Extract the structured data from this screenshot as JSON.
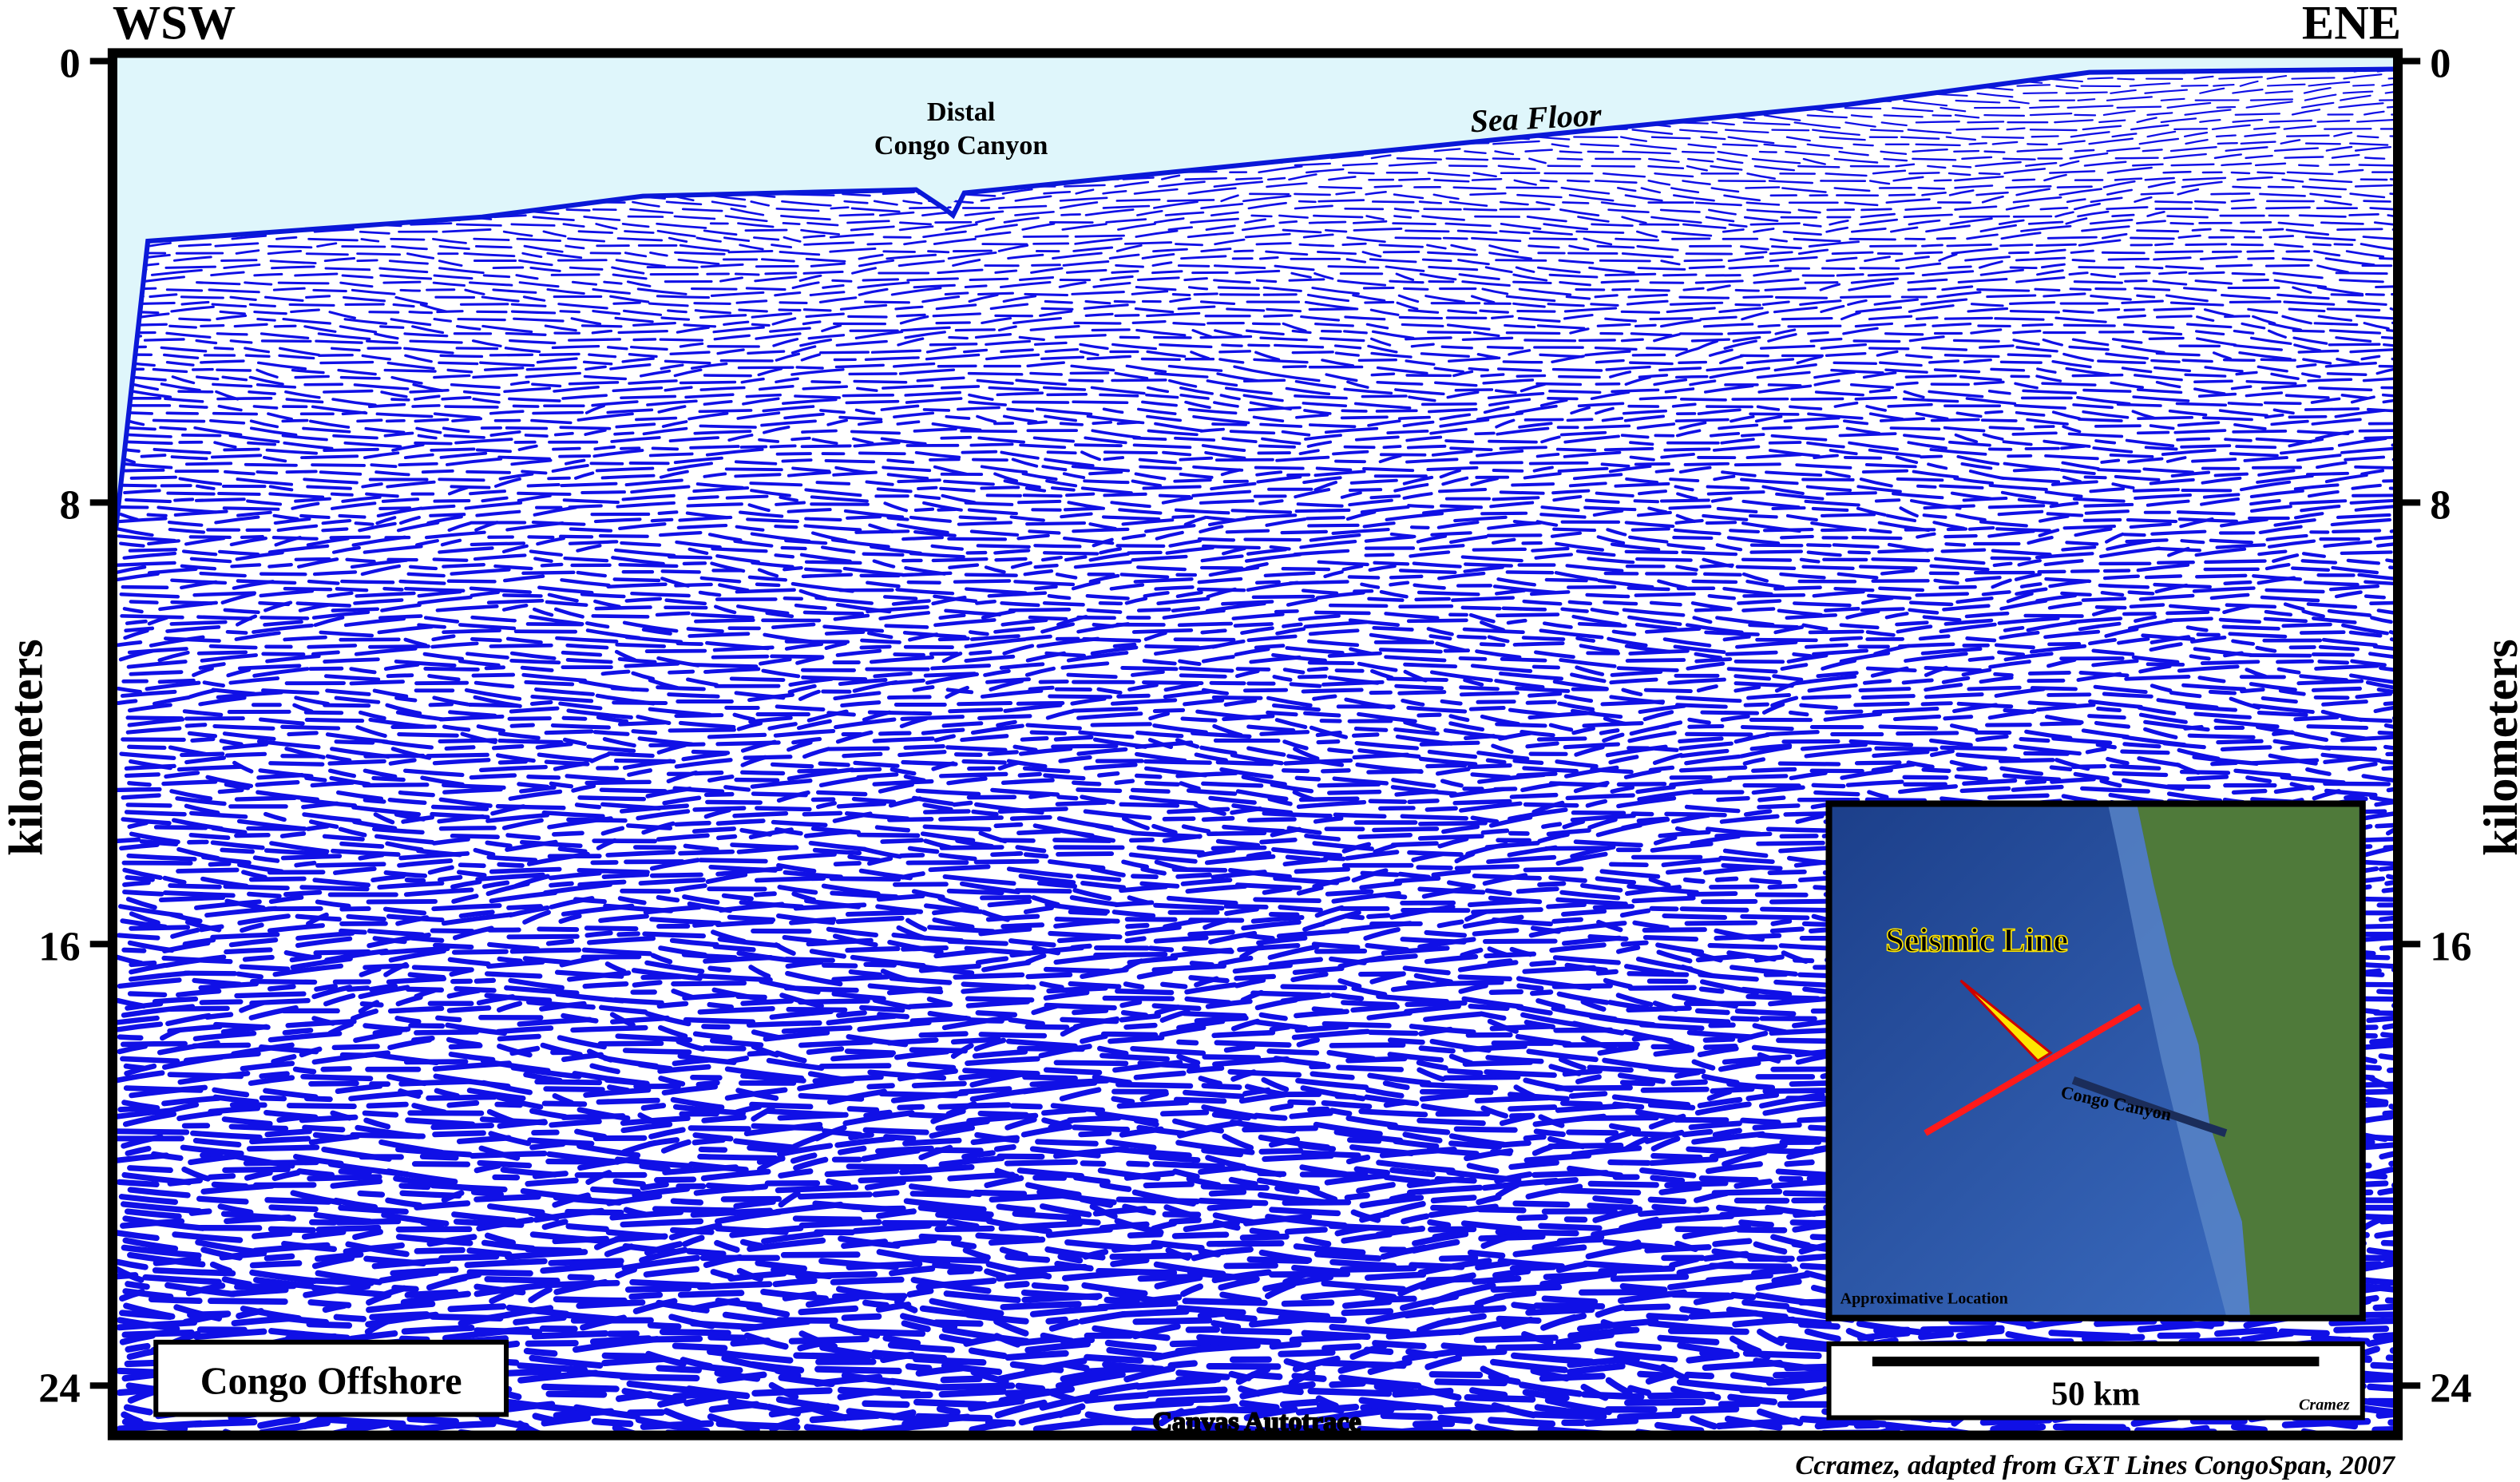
{
  "header": {
    "left": "WSW",
    "right": "ENE"
  },
  "axis": {
    "label": "kilometers",
    "ticks": [
      0,
      8,
      16,
      24
    ]
  },
  "annotations": {
    "canyon_line1": "Distal",
    "canyon_line2": "Congo Canyon",
    "sea_floor": "Sea Floor"
  },
  "location_box": "Congo Offshore",
  "inset": {
    "seismic_line": "Seismic Line",
    "canyon": "Congo Canyon",
    "caption": "Approximative Location"
  },
  "scale": {
    "label": "50 km",
    "signature": "Cramez"
  },
  "footer": {
    "software": "Canvas Autotrace",
    "credit": "Ccramez, adapted from GXT Lines CongoSpan, 2007"
  }
}
